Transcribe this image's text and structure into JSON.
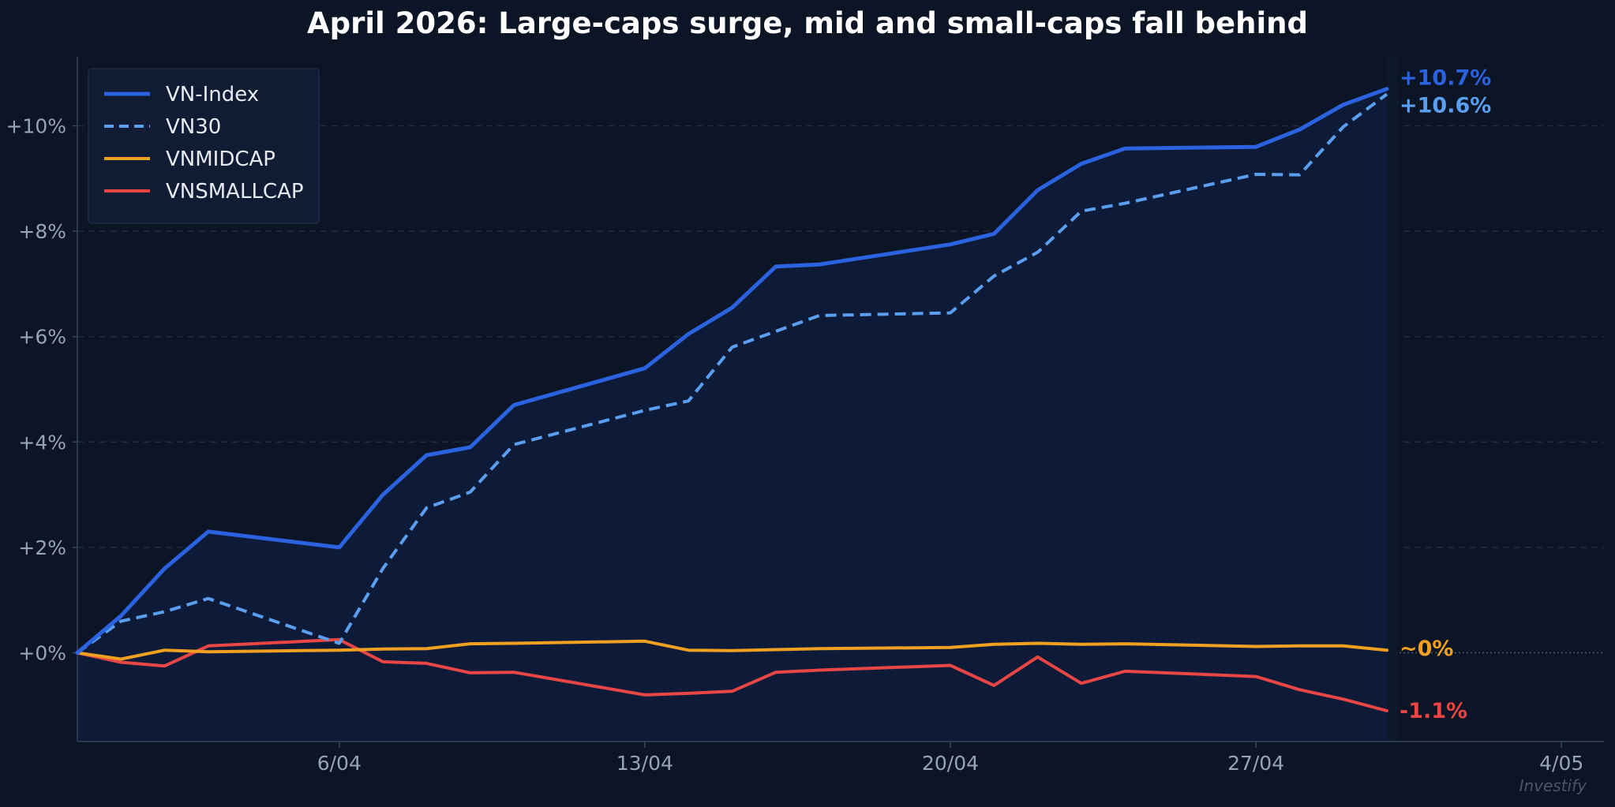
{
  "chart_data": {
    "type": "line",
    "title": "April 2026: Large-caps surge, mid and small-caps fall behind",
    "xlabel": "",
    "ylabel": "",
    "x_ticks": [
      "6/04",
      "13/04",
      "20/04",
      "27/04",
      "4/05"
    ],
    "x_tick_days": [
      6,
      13,
      20,
      27,
      34
    ],
    "x_range_days": [
      0,
      34.9
    ],
    "y_ticks": [
      "+0%",
      "+2%",
      "+4%",
      "+6%",
      "+8%",
      "+10%"
    ],
    "y_tick_values": [
      0,
      2,
      4,
      6,
      8,
      10
    ],
    "ylim": [
      -1.7,
      11.4
    ],
    "grid": true,
    "legend_position": "top-left",
    "x_days": [
      0,
      1,
      2,
      3,
      6,
      7,
      8,
      9,
      10,
      13,
      14,
      15,
      16,
      17,
      20,
      21,
      22,
      23,
      24,
      27,
      28,
      29,
      30
    ],
    "series": [
      {
        "name": "VN-Index",
        "color": "#2a62e0",
        "style": "solid",
        "end_label": "+10.7%",
        "values": [
          0,
          0.7,
          1.6,
          2.3,
          2.0,
          3.0,
          3.75,
          3.9,
          4.7,
          5.4,
          6.05,
          6.55,
          7.33,
          7.37,
          7.75,
          7.95,
          8.78,
          9.28,
          9.57,
          9.6,
          9.93,
          10.4,
          10.7
        ]
      },
      {
        "name": "VN30",
        "color": "#5a9ef0",
        "style": "dashed",
        "end_label": "+10.6%",
        "values": [
          0,
          0.6,
          0.78,
          1.03,
          0.18,
          1.6,
          2.75,
          3.05,
          3.95,
          4.6,
          4.78,
          5.8,
          6.1,
          6.4,
          6.45,
          7.15,
          7.6,
          8.38,
          8.53,
          9.08,
          9.07,
          9.98,
          10.6
        ]
      },
      {
        "name": "VNMIDCAP",
        "color": "#f0a020",
        "style": "solid",
        "end_label": "~0%",
        "values": [
          0,
          -0.12,
          0.05,
          0.02,
          0.05,
          0.07,
          0.08,
          0.17,
          0.18,
          0.22,
          0.05,
          0.04,
          0.06,
          0.08,
          0.1,
          0.16,
          0.18,
          0.16,
          0.17,
          0.12,
          0.13,
          0.13,
          0.05
        ]
      },
      {
        "name": "VNSMALLCAP",
        "color": "#e84545",
        "style": "solid",
        "end_label": "-1.1%",
        "values": [
          0,
          -0.18,
          -0.25,
          0.13,
          0.25,
          -0.17,
          -0.2,
          -0.38,
          -0.37,
          -0.8,
          -0.77,
          -0.73,
          -0.37,
          -0.33,
          -0.24,
          -0.62,
          -0.08,
          -0.58,
          -0.35,
          -0.45,
          -0.7,
          -0.88,
          -1.1
        ]
      }
    ],
    "watermark": "Investify"
  }
}
